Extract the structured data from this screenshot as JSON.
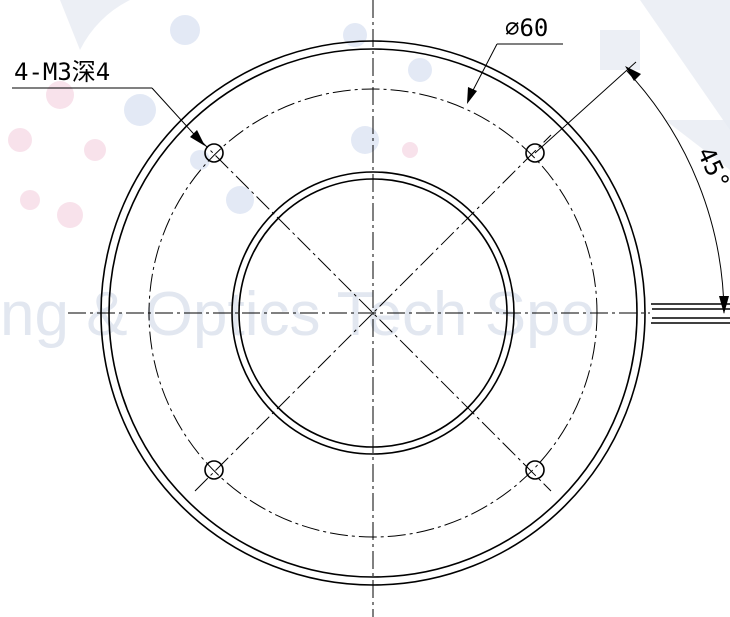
{
  "watermark": {
    "text": "ng & Optics Tech Spo"
  },
  "labels": {
    "hole_callout": "4-M3深4",
    "pcd": "⌀60",
    "angle": "45°"
  }
}
